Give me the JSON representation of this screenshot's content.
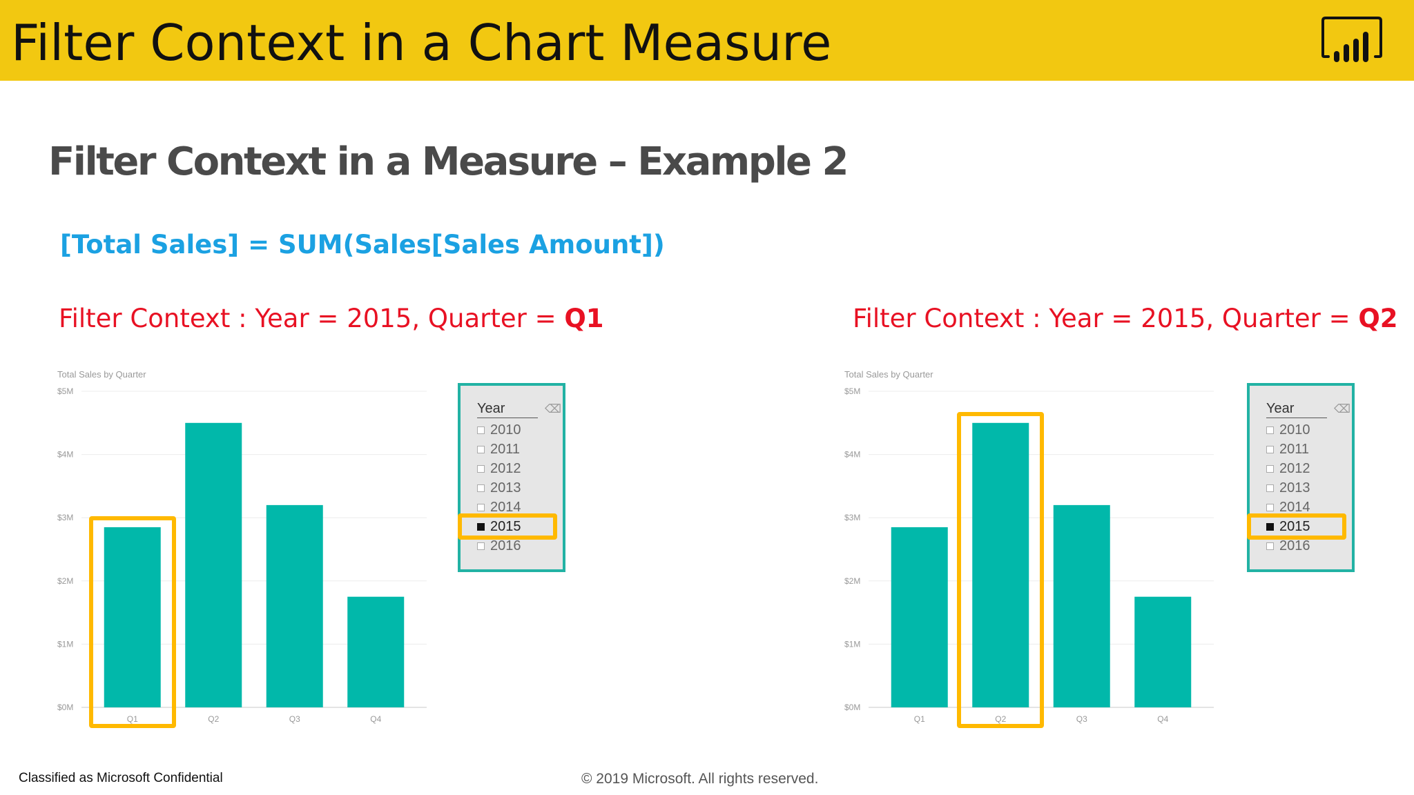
{
  "header": {
    "title": "Filter Context in a Chart Measure",
    "logo_icon": "power-bi-logo-icon",
    "background_color": "#F2C811"
  },
  "subtitle": "Filter Context in a Measure – Example 2",
  "formula": "[Total Sales] = SUM(Sales[Sales Amount])",
  "panels": [
    {
      "filter_context_prefix": "Filter Context : Year = 2015, Quarter = ",
      "filter_context_quarter": "Q1",
      "highlighted_category": "Q1"
    },
    {
      "filter_context_prefix": "Filter Context : Year = 2015, Quarter = ",
      "filter_context_quarter": "Q2",
      "highlighted_category": "Q2"
    }
  ],
  "slicer": {
    "title": "Year",
    "eraser_icon": "eraser-icon",
    "items": [
      "2010",
      "2011",
      "2012",
      "2013",
      "2014",
      "2015",
      "2016"
    ],
    "selected": "2015"
  },
  "chart_data": [
    {
      "type": "bar",
      "title": "Total Sales by Quarter",
      "categories": [
        "Q1",
        "Q2",
        "Q3",
        "Q4"
      ],
      "values": [
        2.85,
        4.5,
        3.2,
        1.75
      ],
      "ylim": [
        0,
        5
      ],
      "yticks": [
        "$0M",
        "$1M",
        "$2M",
        "$3M",
        "$4M",
        "$5M"
      ],
      "grid": true,
      "color": "#01B8AA"
    },
    {
      "type": "bar",
      "title": "Total Sales by Quarter",
      "categories": [
        "Q1",
        "Q2",
        "Q3",
        "Q4"
      ],
      "values": [
        2.85,
        4.5,
        3.2,
        1.75
      ],
      "ylim": [
        0,
        5
      ],
      "yticks": [
        "$0M",
        "$1M",
        "$2M",
        "$3M",
        "$4M",
        "$5M"
      ],
      "grid": true,
      "color": "#01B8AA"
    }
  ],
  "highlight_color": "#FFB900",
  "footer": {
    "classification": "Classified as Microsoft Confidential",
    "copyright": "© 2019 Microsoft. All rights reserved."
  }
}
